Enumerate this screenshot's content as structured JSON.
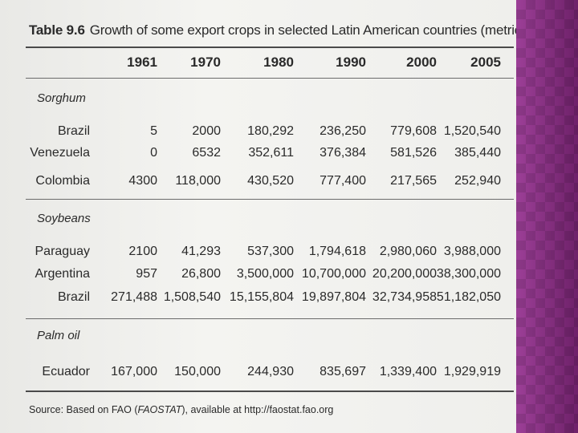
{
  "title": {
    "label": "Table 9.6",
    "text": "Growth of some export crops in selected Latin American countries (metric tons)"
  },
  "years": [
    "1961",
    "1970",
    "1980",
    "1990",
    "2000",
    "2005"
  ],
  "sections": [
    {
      "name": "Sorghum",
      "rows": [
        {
          "country": "Brazil",
          "values": [
            "5",
            "2000",
            "180,292",
            "236,250",
            "779,608",
            "1,520,540"
          ]
        },
        {
          "country": "Venezuela",
          "values": [
            "0",
            "6532",
            "352,611",
            "376,384",
            "581,526",
            "385,440"
          ]
        },
        {
          "country": "Colombia",
          "values": [
            "4300",
            "118,000",
            "430,520",
            "777,400",
            "217,565",
            "252,940"
          ]
        }
      ]
    },
    {
      "name": "Soybeans",
      "rows": [
        {
          "country": "Paraguay",
          "values": [
            "2100",
            "41,293",
            "537,300",
            "1,794,618",
            "2,980,060",
            "3,988,000"
          ]
        },
        {
          "country": "Argentina",
          "values": [
            "957",
            "26,800",
            "3,500,000",
            "10,700,000",
            "20,200,000",
            "38,300,000"
          ]
        },
        {
          "country": "Brazil",
          "values": [
            "271,488",
            "1,508,540",
            "15,155,804",
            "19,897,804",
            "32,734,958",
            "51,182,050"
          ]
        }
      ]
    },
    {
      "name": "Palm oil",
      "rows": [
        {
          "country": "Ecuador",
          "values": [
            "167,000",
            "150,000",
            "244,930",
            "835,697",
            "1,339,400",
            "1,929,919"
          ]
        }
      ]
    }
  ],
  "source": {
    "prefix": "Source: Based on FAO (",
    "name": "FAOSTAT",
    "suffix": "), available at http://faostat.fao.org"
  }
}
